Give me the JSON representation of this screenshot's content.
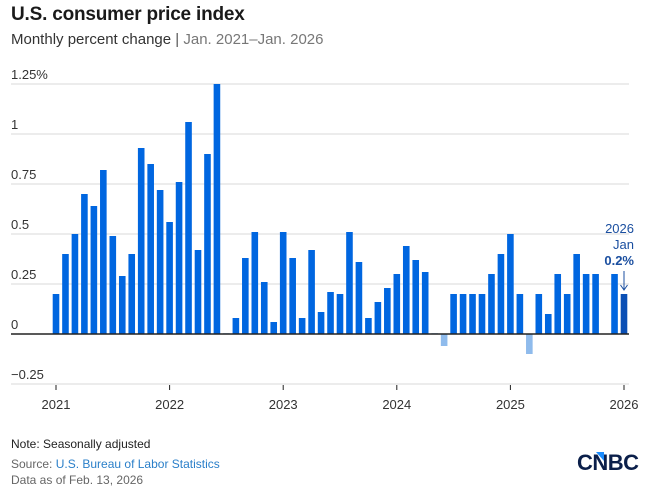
{
  "header": {
    "title": "U.S. consumer price index",
    "subtitle_main": "Monthly percent change",
    "subtitle_sep": "|",
    "subtitle_range": "Jan. 2021–Jan. 2026"
  },
  "chart_data": {
    "type": "bar",
    "title": "U.S. consumer price index",
    "subtitle": "Monthly percent change | Jan. 2021–Jan. 2026",
    "xlabel": "",
    "ylabel": "",
    "ylim": [
      -0.25,
      1.25
    ],
    "yticks": [
      1.25,
      1,
      0.75,
      0.5,
      0.25,
      0,
      -0.25
    ],
    "ytick_labels": [
      "1.25%",
      "1",
      "0.75",
      "0.5",
      "0.25",
      "0",
      "−0.25"
    ],
    "xticks": [
      "2021",
      "2022",
      "2023",
      "2024",
      "2025",
      "2026"
    ],
    "grid": true,
    "legend": "none",
    "colors": {
      "positive": "#0066e0",
      "negative": "#8fbbec",
      "highlight": "#0a4fb5",
      "annotation": "#1b4fa0",
      "grid": "#d8d8d8",
      "baseline": "#222222"
    },
    "categories": [
      "2021-01",
      "2021-02",
      "2021-03",
      "2021-04",
      "2021-05",
      "2021-06",
      "2021-07",
      "2021-08",
      "2021-09",
      "2021-10",
      "2021-11",
      "2021-12",
      "2022-01",
      "2022-02",
      "2022-03",
      "2022-04",
      "2022-05",
      "2022-06",
      "2022-07",
      "2022-08",
      "2022-09",
      "2022-10",
      "2022-11",
      "2022-12",
      "2023-01",
      "2023-02",
      "2023-03",
      "2023-04",
      "2023-05",
      "2023-06",
      "2023-07",
      "2023-08",
      "2023-09",
      "2023-10",
      "2023-11",
      "2023-12",
      "2024-01",
      "2024-02",
      "2024-03",
      "2024-04",
      "2024-05",
      "2024-06",
      "2024-07",
      "2024-08",
      "2024-09",
      "2024-10",
      "2024-11",
      "2024-12",
      "2025-01",
      "2025-02",
      "2025-03",
      "2025-04",
      "2025-05",
      "2025-06",
      "2025-07",
      "2025-08",
      "2025-09",
      "2025-10",
      "2025-11",
      "2025-12",
      "2026-01"
    ],
    "values": [
      0.2,
      0.4,
      0.5,
      0.7,
      0.64,
      0.82,
      0.49,
      0.29,
      0.4,
      0.93,
      0.85,
      0.72,
      0.56,
      0.76,
      1.06,
      0.42,
      0.9,
      1.25,
      0.0,
      0.08,
      0.38,
      0.51,
      0.26,
      0.06,
      0.51,
      0.38,
      0.08,
      0.42,
      0.11,
      0.21,
      0.2,
      0.51,
      0.36,
      0.08,
      0.16,
      0.23,
      0.3,
      0.44,
      0.37,
      0.31,
      0.0,
      -0.06,
      0.2,
      0.2,
      0.2,
      0.2,
      0.3,
      0.4,
      0.5,
      0.2,
      -0.1,
      0.2,
      0.1,
      0.3,
      0.2,
      0.4,
      0.3,
      0.3,
      null,
      0.3,
      0.2
    ],
    "highlight_index": 60,
    "annotation": {
      "year": "2026",
      "month": "Jan",
      "value_label": "0.2%"
    }
  },
  "footer": {
    "note": "Note: Seasonally adjusted",
    "source_prefix": "Source: ",
    "source_link": "U.S. Bureau of Labor Statistics",
    "as_of": "Data as of Feb. 13, 2026"
  },
  "logo": {
    "text": "CNBC",
    "color": "#0b1f4a",
    "accent": "#1a8cff"
  }
}
